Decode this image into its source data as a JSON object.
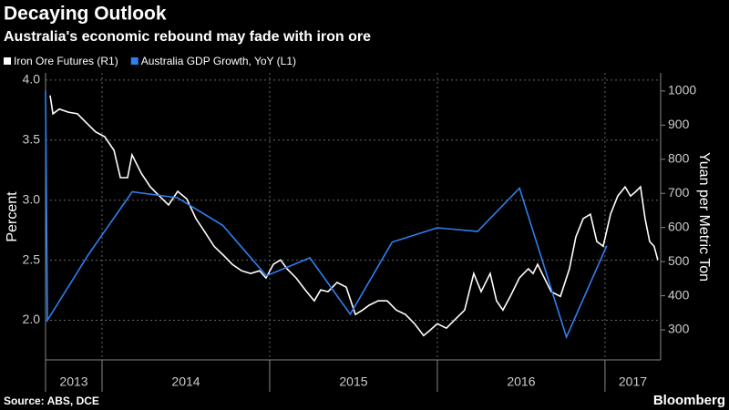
{
  "chart_data": {
    "type": "line",
    "title": "Decaying Outlook",
    "subtitle": "Australia's economic rebound may fade with iron ore",
    "y_label": "Percent",
    "y2_label": "Yuan per Metric Ton",
    "source": "Source: ABS, DCE",
    "brand": "Bloomberg",
    "xlim": [
      2013.663,
      2017.332
    ],
    "xticks": [
      {
        "value": 2013,
        "label": "2013"
      },
      {
        "value": 2014,
        "label": "2014"
      },
      {
        "value": 2015,
        "label": "2015"
      },
      {
        "value": 2016,
        "label": "2016"
      },
      {
        "value": 2017,
        "label": "2017"
      }
    ],
    "ylim": [
      1.67,
      4.06
    ],
    "yticks": [
      {
        "value": 2,
        "label": "2.0"
      },
      2.5,
      {
        "value": 3,
        "label": "3.0"
      },
      3.5,
      {
        "value": 4,
        "label": "4.0"
      }
    ],
    "y2lim": [
      212,
      1053
    ],
    "y2ticks": [
      300,
      400,
      500,
      600,
      700,
      800,
      900,
      1000
    ],
    "grid": true,
    "series": [
      {
        "name": "Iron Ore Futures (R1)",
        "color": "#ffffff",
        "axis": "y2",
        "x": [
          2013.69,
          2013.707,
          2013.745,
          2013.799,
          2013.853,
          2013.908,
          2013.962,
          2014.016,
          2014.071,
          2014.109,
          2014.152,
          2014.179,
          2014.234,
          2014.288,
          2014.342,
          2014.397,
          2014.451,
          2014.505,
          2014.56,
          2014.614,
          2014.668,
          2014.723,
          2014.777,
          2014.832,
          2014.886,
          2014.94,
          2014.978,
          2015.022,
          2015.065,
          2015.103,
          2015.158,
          2015.212,
          2015.266,
          2015.304,
          2015.348,
          2015.402,
          2015.457,
          2015.511,
          2015.554,
          2015.592,
          2015.647,
          2015.701,
          2015.755,
          2015.81,
          2015.864,
          2015.918,
          2015.957,
          2016.0,
          2016.054,
          2016.109,
          2016.163,
          2016.217,
          2016.261,
          2016.315,
          2016.353,
          2016.391,
          2016.435,
          2016.489,
          2016.543,
          2016.571,
          2016.598,
          2016.625,
          2016.679,
          2016.734,
          2016.788,
          2016.826,
          2016.87,
          2016.913,
          2016.951,
          2016.989,
          2017.033,
          2017.076,
          2017.12,
          2017.152,
          2017.185,
          2017.212,
          2017.239,
          2017.266,
          2017.293,
          2017.315
        ],
        "values": [
          987,
          933,
          947,
          938,
          933,
          906,
          880,
          866,
          826,
          746,
          746,
          813,
          759,
          719,
          692,
          666,
          706,
          684,
          626,
          586,
          545,
          519,
          492,
          473,
          465,
          473,
          452,
          492,
          505,
          479,
          452,
          417,
          385,
          417,
          412,
          439,
          425,
          345,
          358,
          372,
          385,
          385,
          358,
          345,
          318,
          283,
          299,
          318,
          305,
          332,
          358,
          465,
          412,
          465,
          385,
          358,
          398,
          452,
          479,
          465,
          492,
          465,
          412,
          398,
          479,
          572,
          626,
          639,
          559,
          545,
          639,
          692,
          719,
          692,
          706,
          719,
          626,
          559,
          545,
          505
        ]
      },
      {
        "name": "Australia GDP Growth, YoY (L1)",
        "color": "#2e7ff0",
        "x": [
          2013.663,
          2013.674,
          2013.92,
          2014.18,
          2014.45,
          2014.72,
          2014.98,
          2015.24,
          2015.48,
          2015.73,
          2016.0,
          2016.24,
          2016.49,
          2016.77,
          2017.01
        ],
        "values": [
          3.91,
          2.0,
          2.55,
          3.07,
          3.02,
          2.79,
          2.37,
          2.52,
          2.05,
          2.65,
          2.77,
          2.74,
          3.1,
          1.86,
          2.62
        ]
      }
    ]
  }
}
